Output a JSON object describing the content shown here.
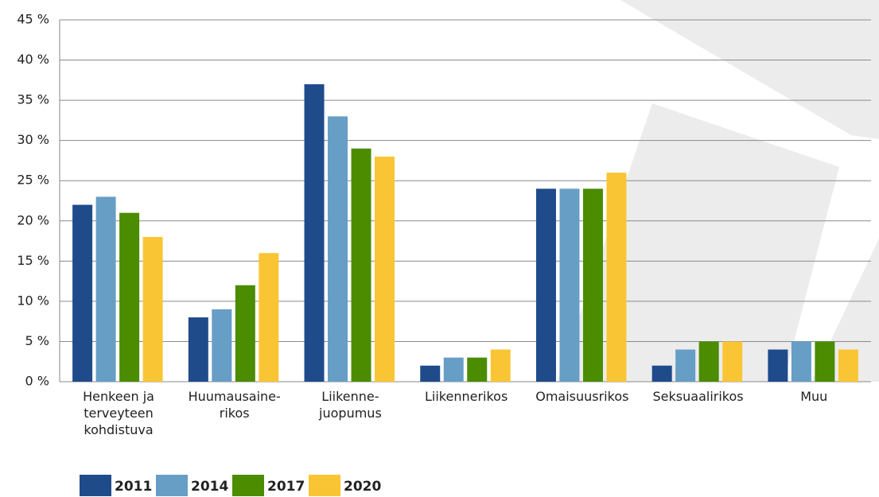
{
  "chart_data": {
    "type": "bar",
    "categories": [
      "Henkeen ja\nterveyteen\nkohdistuva",
      "Huumausaine-\nrikos",
      "Liikenne-\njuopumus",
      "Liikennerikos",
      "Omaisuusrikos",
      "Seksuaalirikos",
      "Muu"
    ],
    "series": [
      {
        "name": "2011",
        "color": "#1f4b8b",
        "values": [
          22,
          8,
          37,
          2,
          24,
          2,
          4
        ]
      },
      {
        "name": "2014",
        "color": "#679ec6",
        "values": [
          23,
          9,
          33,
          3,
          24,
          4,
          5
        ]
      },
      {
        "name": "2017",
        "color": "#4b8c00",
        "values": [
          21,
          12,
          29,
          3,
          24,
          5,
          5
        ]
      },
      {
        "name": "2020",
        "color": "#fac535",
        "values": [
          18,
          16,
          28,
          4,
          26,
          5,
          4
        ]
      }
    ],
    "ylim": [
      0,
      45
    ],
    "yticks": [
      {
        "value": 0,
        "label": "0 %"
      },
      {
        "value": 5,
        "label": "5 %"
      },
      {
        "value": 10,
        "label": "10 %"
      },
      {
        "value": 15,
        "label": "15 %"
      },
      {
        "value": 20,
        "label": "20 %"
      },
      {
        "value": 25,
        "label": "25 %"
      },
      {
        "value": 30,
        "label": "30 %"
      },
      {
        "value": 35,
        "label": "35 %"
      },
      {
        "value": 40,
        "label": "40 %"
      },
      {
        "value": 45,
        "label": "45 %"
      }
    ],
    "grid": true,
    "legend": "bottom"
  }
}
